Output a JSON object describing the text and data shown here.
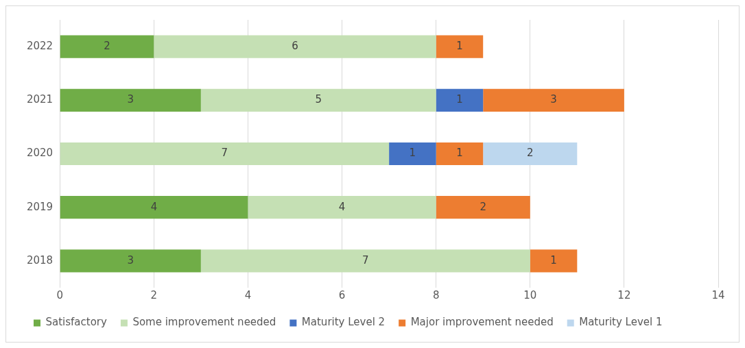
{
  "chart_data": {
    "type": "bar",
    "orientation": "horizontal",
    "stacked": true,
    "categories": [
      "2022",
      "2021",
      "2020",
      "2019",
      "2018"
    ],
    "series": [
      {
        "name": "Satisfactory",
        "color": "#70ad47",
        "values": [
          2,
          3,
          null,
          4,
          3
        ]
      },
      {
        "name": "Some improvement needed",
        "color": "#c5e0b4",
        "values": [
          6,
          5,
          7,
          4,
          7
        ]
      },
      {
        "name": "Maturity Level 2",
        "color": "#4472c4",
        "values": [
          null,
          1,
          1,
          null,
          null
        ]
      },
      {
        "name": "Major improvement needed",
        "color": "#ed7d31",
        "values": [
          1,
          3,
          1,
          2,
          1
        ]
      },
      {
        "name": "Maturity Level 1",
        "color": "#bdd7ee",
        "values": [
          null,
          null,
          2,
          null,
          null
        ]
      }
    ],
    "xlim": [
      0,
      14
    ],
    "xticks": [
      0,
      2,
      4,
      6,
      8,
      10,
      12,
      14
    ],
    "grid": "x",
    "legend": "bottom",
    "data_labels": true
  }
}
